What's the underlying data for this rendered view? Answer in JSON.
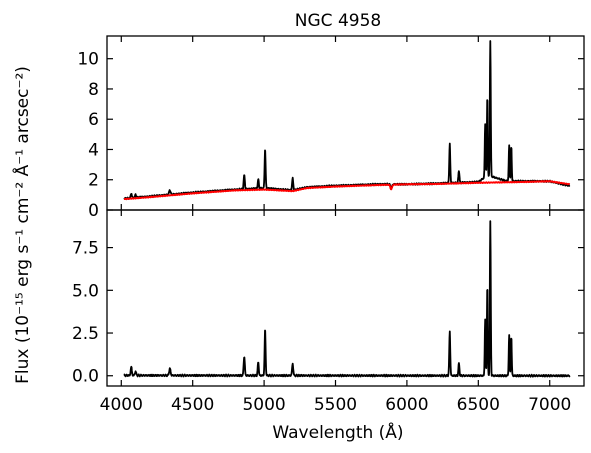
{
  "chart_data": {
    "title": "NGC 4958",
    "xlabel": "Wavelength (Å)",
    "ylabel": "Flux (10⁻¹⁵ erg s⁻¹ cm⁻² Å⁻¹ arcsec⁻²)",
    "xlim": [
      3900,
      7240
    ],
    "x_ticks": [
      4000,
      4500,
      5000,
      5500,
      6000,
      6500,
      7000
    ],
    "x_tick_labels": [
      "4000",
      "4500",
      "5000",
      "5500",
      "6000",
      "6500",
      "7000"
    ],
    "panels": [
      {
        "type": "line",
        "ylim": [
          0,
          11.5
        ],
        "y_ticks": [
          0,
          2,
          4,
          6,
          8,
          10
        ],
        "y_tick_labels": [
          "0",
          "2",
          "4",
          "6",
          "8",
          "10"
        ],
        "grid": false,
        "series": [
          {
            "color": "#000000",
            "continuum": [
              [
                4020,
                0.75
              ],
              [
                4200,
                0.9
              ],
              [
                4500,
                1.15
              ],
              [
                4800,
                1.35
              ],
              [
                5000,
                1.45
              ],
              [
                5200,
                1.3
              ],
              [
                5300,
                1.5
              ],
              [
                5500,
                1.6
              ],
              [
                5800,
                1.7
              ],
              [
                6000,
                1.7
              ],
              [
                6200,
                1.75
              ],
              [
                6500,
                1.85
              ],
              [
                6550,
                2.2
              ],
              [
                6600,
                2.2
              ],
              [
                6700,
                1.9
              ],
              [
                7000,
                1.9
              ],
              [
                7140,
                1.6
              ]
            ],
            "lines": [
              [
                4070,
                0.3,
                4
              ],
              [
                4100,
                0.2,
                4
              ],
              [
                4340,
                0.3,
                5
              ],
              [
                4861,
                0.9,
                4
              ],
              [
                4959,
                0.6,
                3.5
              ],
              [
                5007,
                2.6,
                3.5
              ],
              [
                5200,
                0.8,
                4
              ],
              [
                5890,
                -0.3,
                5
              ],
              [
                6300,
                2.6,
                3.5
              ],
              [
                6364,
                0.8,
                3.5
              ],
              [
                6548,
                3.5,
                3
              ],
              [
                6563,
                5.3,
                3
              ],
              [
                6584,
                9.0,
                3
              ],
              [
                6716,
                2.4,
                3
              ],
              [
                6731,
                2.3,
                3
              ]
            ]
          },
          {
            "color": "#ff0000",
            "continuum": [
              [
                4020,
                0.72
              ],
              [
                4200,
                0.85
              ],
              [
                4500,
                1.1
              ],
              [
                4800,
                1.3
              ],
              [
                5000,
                1.35
              ],
              [
                5200,
                1.25
              ],
              [
                5300,
                1.45
              ],
              [
                5500,
                1.55
              ],
              [
                5800,
                1.65
              ],
              [
                6000,
                1.7
              ],
              [
                6200,
                1.72
              ],
              [
                6500,
                1.8
              ],
              [
                6800,
                1.85
              ],
              [
                7000,
                1.9
              ],
              [
                7140,
                1.7
              ]
            ],
            "lines": [
              [
                5890,
                -0.3,
                6
              ]
            ]
          }
        ]
      },
      {
        "type": "line",
        "ylim": [
          -0.6,
          9.7
        ],
        "y_ticks": [
          0,
          2.5,
          5,
          7.5
        ],
        "y_tick_labels": [
          "0.0",
          "2.5",
          "5.0",
          "7.5"
        ],
        "grid": false,
        "series": [
          {
            "color": "#000000",
            "continuum": [
              [
                4020,
                0.02
              ],
              [
                7140,
                0.0
              ]
            ],
            "lines": [
              [
                4070,
                0.5,
                4
              ],
              [
                4100,
                0.25,
                4
              ],
              [
                4340,
                0.4,
                5
              ],
              [
                4861,
                1.1,
                4
              ],
              [
                4959,
                0.8,
                3.5
              ],
              [
                5007,
                2.7,
                3.5
              ],
              [
                5200,
                0.7,
                4
              ],
              [
                6300,
                2.6,
                3.5
              ],
              [
                6364,
                0.7,
                3.5
              ],
              [
                6548,
                3.3,
                3
              ],
              [
                6563,
                5.3,
                3
              ],
              [
                6584,
                9.0,
                3
              ],
              [
                6716,
                2.4,
                3
              ],
              [
                6731,
                2.3,
                3
              ]
            ]
          }
        ]
      }
    ]
  }
}
